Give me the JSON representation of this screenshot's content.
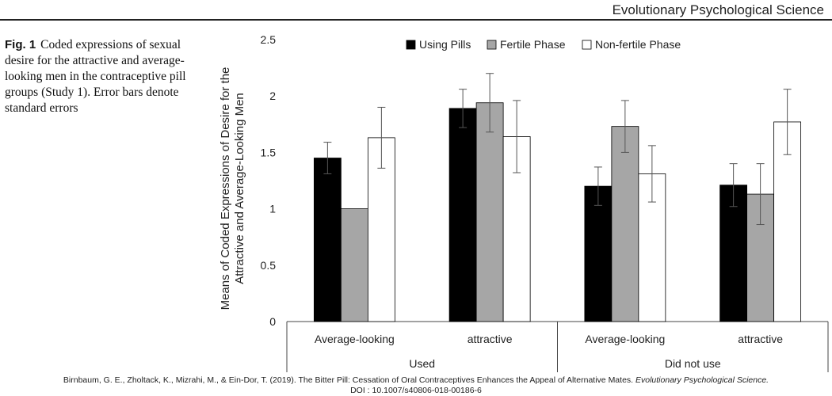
{
  "header": {
    "journal": "Evolutionary Psychological Science"
  },
  "caption": {
    "label": "Fig. 1",
    "text": "Coded expressions of sexual desire for the attractive and average-looking men in the contraceptive pill groups (Study 1). Error bars denote standard errors"
  },
  "footer": {
    "citation": "Birnbaum, G. E., Zholtack, K., Mizrahi, M., & Ein-Dor, T. (2019). The Bitter Pill: Cessation of Oral Contraceptives Enhances the Appeal of Alternative Mates.",
    "journal": "Evolutionary Psychological Science.",
    "doi": "DOI : 10.1007/s40806-018-00186-6"
  },
  "chart_data": {
    "type": "bar",
    "ylabel_line1": "Means of Coded Expressions of Desire for the",
    "ylabel_line2": "Attractive and Average-Looking Men",
    "ylim": [
      0,
      2.5
    ],
    "yticks": [
      "0",
      "0.5",
      "1",
      "1.5",
      "2",
      "2.5"
    ],
    "ytick_values": [
      0,
      0.5,
      1,
      1.5,
      2,
      2.5
    ],
    "grid": false,
    "legend_position": "top",
    "groups": [
      {
        "label": "Used",
        "categories": [
          "Average-looking",
          "attractive"
        ]
      },
      {
        "label": "Did not use",
        "categories": [
          "Average-looking",
          "attractive"
        ]
      }
    ],
    "categories": [
      "Average-looking",
      "attractive",
      "Average-looking",
      "attractive"
    ],
    "series": [
      {
        "name": "Using Pills",
        "color": "#000000",
        "values": [
          1.45,
          1.89,
          1.2,
          1.21
        ],
        "errors": [
          0.14,
          0.17,
          0.17,
          0.19
        ]
      },
      {
        "name": "Fertile Phase",
        "color": "#a6a6a6",
        "values": [
          1.0,
          1.94,
          1.73,
          1.13
        ],
        "errors": [
          0.0,
          0.26,
          0.23,
          0.27
        ]
      },
      {
        "name": "Non-fertile Phase",
        "color": "#ffffff",
        "values": [
          1.63,
          1.64,
          1.31,
          1.77
        ],
        "errors": [
          0.27,
          0.32,
          0.25,
          0.29
        ]
      }
    ]
  }
}
